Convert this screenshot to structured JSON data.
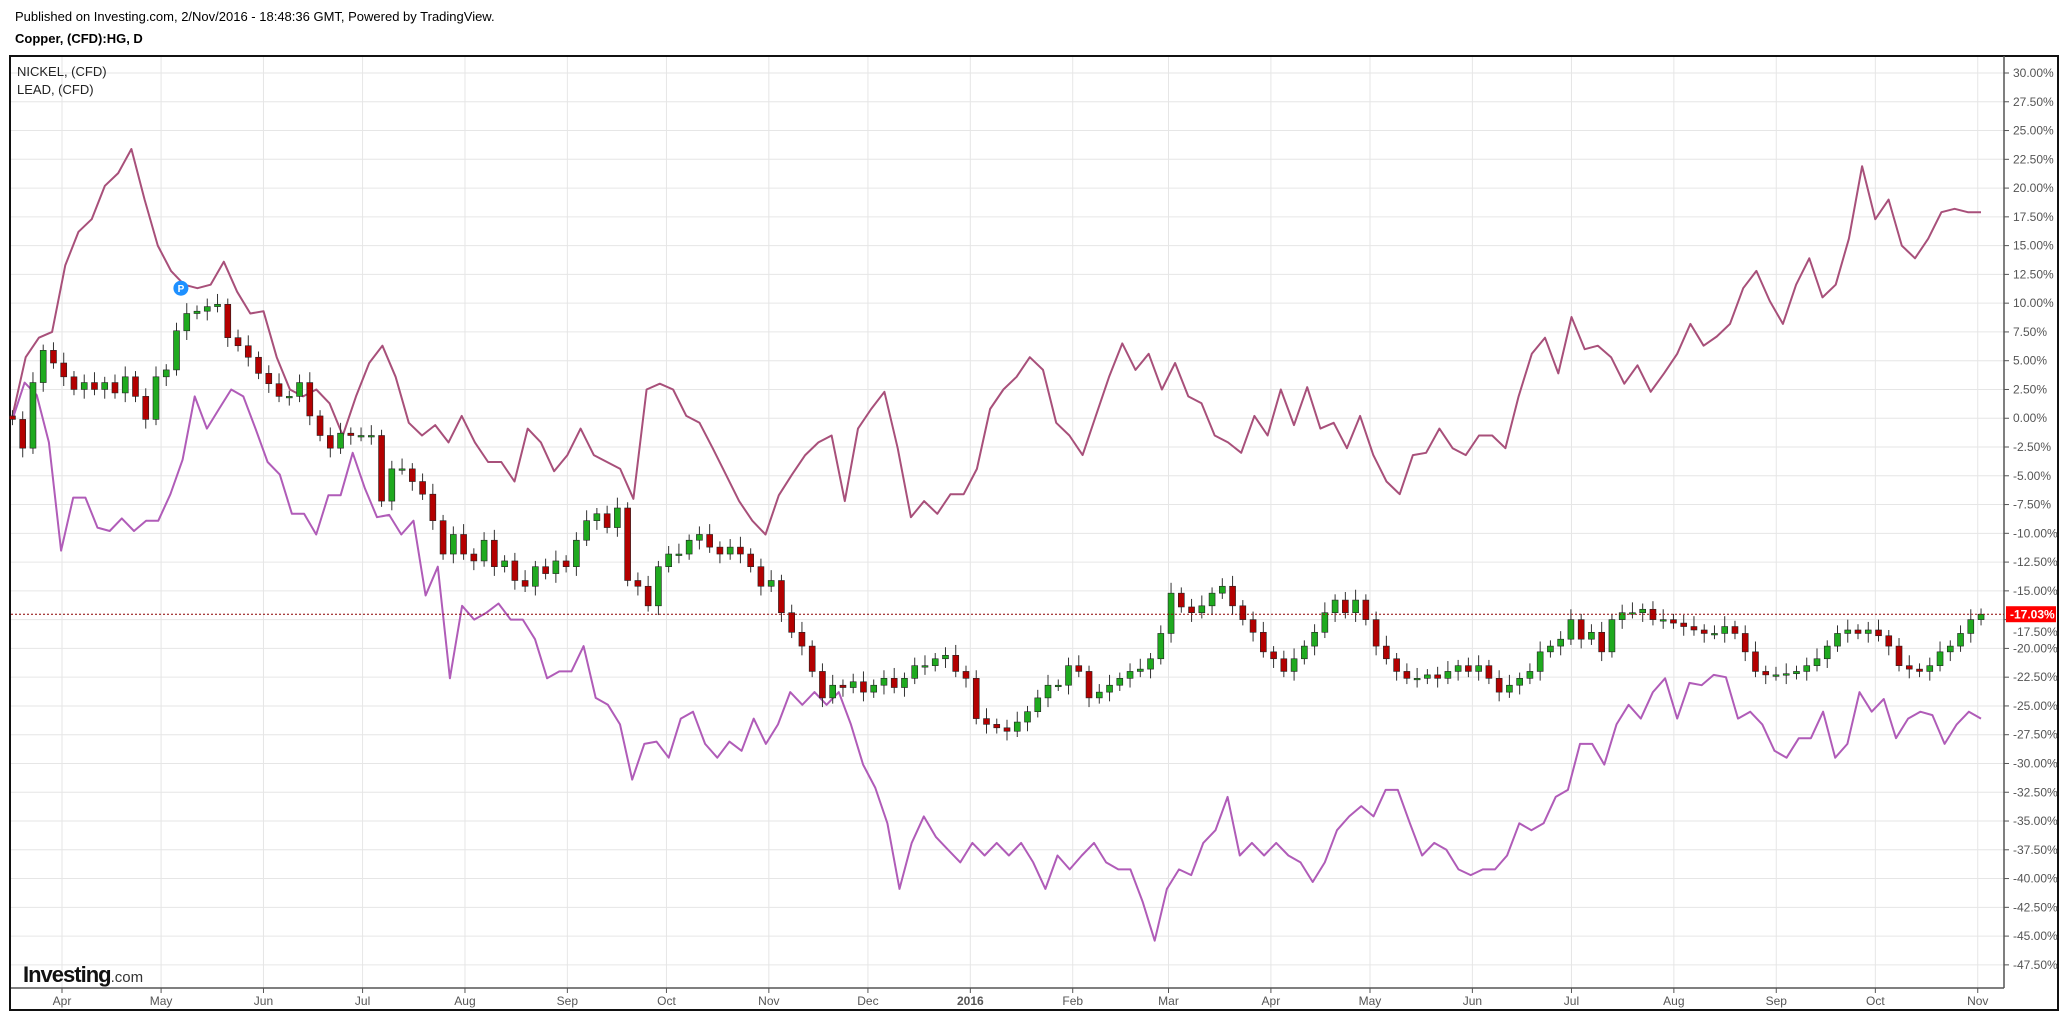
{
  "header": {
    "published": "Published on Investing.com, 2/Nov/2016 - 18:48:36 GMT, Powered by TradingView.",
    "symbol": "Copper, (CFD):HG, D"
  },
  "logo": {
    "text": "Investing",
    "suffix": ".com"
  },
  "chart_data": {
    "type": "line",
    "title": "Copper, (CFD):HG, D",
    "xlim": [
      "2015-03-17",
      "2016-11-02"
    ],
    "ylim": [
      -50,
      31.5
    ],
    "y_unit": "%",
    "grid": true,
    "legend_placement": "top-left",
    "x_ticks": [
      {
        "label": "Apr",
        "date": "2015-04-01"
      },
      {
        "label": "May",
        "date": "2015-05-01"
      },
      {
        "label": "Jun",
        "date": "2015-06-01"
      },
      {
        "label": "Jul",
        "date": "2015-07-01"
      },
      {
        "label": "Aug",
        "date": "2015-08-01"
      },
      {
        "label": "Sep",
        "date": "2015-09-01"
      },
      {
        "label": "Oct",
        "date": "2015-10-01"
      },
      {
        "label": "Nov",
        "date": "2015-11-01"
      },
      {
        "label": "Dec",
        "date": "2015-12-01"
      },
      {
        "label": "2016",
        "date": "2016-01-01"
      },
      {
        "label": "Feb",
        "date": "2016-02-01"
      },
      {
        "label": "Mar",
        "date": "2016-03-01"
      },
      {
        "label": "Apr",
        "date": "2016-04-01"
      },
      {
        "label": "May",
        "date": "2016-05-01"
      },
      {
        "label": "Jun",
        "date": "2016-06-01"
      },
      {
        "label": "Jul",
        "date": "2016-07-01"
      },
      {
        "label": "Aug",
        "date": "2016-08-01"
      },
      {
        "label": "Sep",
        "date": "2016-09-01"
      },
      {
        "label": "Oct",
        "date": "2016-10-01"
      },
      {
        "label": "Nov",
        "date": "2016-11-01"
      }
    ],
    "y_ticks": [
      "30.00%",
      "27.50%",
      "25.00%",
      "22.50%",
      "20.00%",
      "17.50%",
      "15.00%",
      "12.50%",
      "10.00%",
      "7.50%",
      "5.00%",
      "2.50%",
      "0.00%",
      "-2.50%",
      "-5.00%",
      "-7.50%",
      "-10.00%",
      "-12.50%",
      "-15.00%",
      "-17.50%",
      "-20.00%",
      "-22.50%",
      "-25.00%",
      "-27.50%",
      "-30.00%",
      "-32.50%",
      "-35.00%",
      "-37.50%",
      "-40.00%",
      "-42.50%",
      "-45.00%",
      "-47.50%"
    ],
    "last_value_label": "-17.03%",
    "last_value": -17.03,
    "colors": {
      "up": "#1faa1f",
      "down": "#b40000",
      "nickel": "#a8507a",
      "lead": "#b05cb8",
      "last": "#ff0000",
      "marker": "#1e90ff"
    },
    "marker": {
      "label": "P",
      "date": "2015-05-07",
      "value": 11.3
    },
    "series": [
      {
        "name": "NICKEL,  (CFD)",
        "kind": "line",
        "values": [
          0.2,
          5.3,
          7,
          7.5,
          13.3,
          16.2,
          17.3,
          20.2,
          21.3,
          23.4,
          19,
          15,
          12.8,
          11.6,
          11.3,
          11.6,
          13.6,
          11,
          9.1,
          9.3,
          5.3,
          2.5,
          1.9,
          2.5,
          1.3,
          -1.5,
          1.9,
          4.8,
          6.3,
          3.6,
          -0.4,
          -1.5,
          -0.6,
          -2.1,
          0.2,
          -2.1,
          -3.8,
          -3.8,
          -5.5,
          -0.9,
          -2.1,
          -4.6,
          -3.2,
          -0.9,
          -3.2,
          -3.8,
          -4.4,
          -7,
          2.5,
          3,
          2.5,
          0.2,
          -0.4,
          -2.6,
          -4.9,
          -7.2,
          -8.9,
          -10.1,
          -6.7,
          -4.9,
          -3.2,
          -2.1,
          -1.5,
          -7.2,
          -0.9,
          0.8,
          2.3,
          -2.6,
          -8.6,
          -7.2,
          -8.3,
          -6.6,
          -6.6,
          -4.4,
          0.8,
          2.5,
          3.6,
          5.3,
          4.2,
          -0.4,
          -1.5,
          -3.2,
          0.2,
          3.6,
          6.5,
          4.2,
          5.6,
          2.5,
          4.8,
          1.9,
          1.3,
          -1.5,
          -2.1,
          -3,
          0.2,
          -1.5,
          2.5,
          -0.6,
          2.7,
          -0.9,
          -0.4,
          -2.6,
          0.2,
          -3.2,
          -5.5,
          -6.6,
          -3.2,
          -3,
          -0.9,
          -2.6,
          -3.2,
          -1.5,
          -1.5,
          -2.6,
          1.9,
          5.6,
          7,
          3.9,
          8.8,
          6,
          6.3,
          5.3,
          3,
          4.6,
          2.3,
          3.9,
          5.6,
          8.2,
          6.3,
          7.1,
          8.2,
          11.3,
          12.8,
          10.2,
          8.2,
          11.6,
          13.9,
          10.5,
          11.6,
          15.6,
          21.9,
          17.3,
          19,
          15,
          13.9,
          15.6,
          17.9,
          18.2,
          17.9,
          17.9
        ]
      },
      {
        "name": "LEAD,  (CFD)",
        "kind": "line",
        "values": [
          -0.1,
          3.1,
          2,
          -2.1,
          -11.5,
          -6.9,
          -6.9,
          -9.5,
          -9.8,
          -8.7,
          -9.8,
          -8.9,
          -8.9,
          -6.6,
          -3.6,
          1.9,
          -0.9,
          0.8,
          2.5,
          1.9,
          -0.9,
          -3.8,
          -4.9,
          -8.3,
          -8.3,
          -10.1,
          -6.7,
          -6.7,
          -3,
          -6.1,
          -8.6,
          -8.4,
          -10.1,
          -8.9,
          -15.4,
          -12.9,
          -22.6,
          -16.3,
          -17.5,
          -16.9,
          -16.1,
          -17.5,
          -17.5,
          -19.2,
          -22.6,
          -22,
          -22,
          -19.8,
          -24.3,
          -24.9,
          -26.6,
          -31.4,
          -28.3,
          -28.1,
          -29.5,
          -26.1,
          -25.5,
          -28.3,
          -29.5,
          -28.1,
          -28.9,
          -26.1,
          -28.3,
          -26.6,
          -23.8,
          -24.9,
          -23.8,
          -24.9,
          -23.8,
          -26.6,
          -30.1,
          -32.1,
          -35.2,
          -40.9,
          -36.9,
          -34.6,
          -36.4,
          -37.5,
          -38.6,
          -36.9,
          -38,
          -36.9,
          -38,
          -36.9,
          -38.6,
          -40.9,
          -38,
          -39.2,
          -38,
          -36.9,
          -38.6,
          -39.2,
          -39.2,
          -42,
          -45.4,
          -40.9,
          -39.2,
          -39.7,
          -36.9,
          -35.8,
          -32.9,
          -38,
          -36.9,
          -38,
          -36.9,
          -38,
          -38.6,
          -40.3,
          -38.6,
          -35.8,
          -34.6,
          -33.7,
          -34.6,
          -32.3,
          -32.3,
          -35.2,
          -38,
          -36.9,
          -37.5,
          -39.2,
          -39.7,
          -39.2,
          -39.2,
          -38,
          -35.2,
          -35.8,
          -35.2,
          -32.9,
          -32.3,
          -28.3,
          -28.3,
          -30.1,
          -26.6,
          -24.9,
          -26.1,
          -23.8,
          -22.6,
          -26.1,
          -23,
          -23.2,
          -22.3,
          -22.5,
          -26.1,
          -25.5,
          -26.6,
          -28.9,
          -29.5,
          -27.8,
          -27.8,
          -25.5,
          -29.5,
          -28.3,
          -23.8,
          -25.5,
          -24.4,
          -27.8,
          -26.1,
          -25.5,
          -25.8,
          -28.3,
          -26.6,
          -25.5,
          -26.1
        ]
      },
      {
        "kind": "candlestick",
        "closes": [
          -0.1,
          -2.6,
          3.1,
          5.9,
          4.8,
          3.6,
          2.5,
          3.1,
          2.5,
          3.1,
          2.2,
          3.6,
          1.9,
          -0.1,
          3.6,
          4.2,
          7.6,
          9.1,
          9.3,
          9.7,
          9.9,
          7,
          6.3,
          5.3,
          3.9,
          3,
          1.9,
          1.9,
          3.1,
          0.2,
          -1.5,
          -2.6,
          -1.3,
          -1.5,
          -1.5,
          -1.5,
          -7.2,
          -4.4,
          -4.4,
          -5.5,
          -6.6,
          -8.9,
          -11.8,
          -10.1,
          -11.8,
          -12.4,
          -10.6,
          -12.9,
          -12.4,
          -14.1,
          -14.6,
          -12.9,
          -13.5,
          -12.4,
          -12.9,
          -10.6,
          -8.9,
          -8.3,
          -9.5,
          -7.8,
          -14.1,
          -14.6,
          -16.3,
          -12.9,
          -11.8,
          -11.8,
          -10.6,
          -10.1,
          -11.2,
          -11.8,
          -11.2,
          -11.8,
          -12.9,
          -14.6,
          -14.1,
          -16.9,
          -18.6,
          -19.8,
          -22,
          -24.3,
          -23.2,
          -23.4,
          -22.9,
          -23.8,
          -23.2,
          -22.6,
          -23.4,
          -22.6,
          -21.5,
          -21.5,
          -20.9,
          -20.6,
          -22,
          -22.6,
          -26.1,
          -26.6,
          -26.9,
          -27.2,
          -26.4,
          -25.5,
          -24.3,
          -23.2,
          -23.2,
          -21.5,
          -22,
          -24.3,
          -23.8,
          -23.2,
          -22.6,
          -22,
          -21.8,
          -20.9,
          -18.7,
          -15.2,
          -16.4,
          -16.9,
          -16.3,
          -15.2,
          -14.6,
          -16.3,
          -17.5,
          -18.6,
          -20.3,
          -20.9,
          -22,
          -20.9,
          -19.8,
          -18.6,
          -16.9,
          -15.8,
          -16.9,
          -15.8,
          -17.5,
          -19.8,
          -20.9,
          -22,
          -22.6,
          -22.6,
          -22.3,
          -22.6,
          -22,
          -21.5,
          -22,
          -21.5,
          -22.6,
          -23.8,
          -23.2,
          -22.6,
          -22,
          -20.3,
          -19.8,
          -19.2,
          -17.5,
          -19.2,
          -18.6,
          -20.3,
          -17.5,
          -16.9,
          -16.9,
          -16.6,
          -17.5,
          -17.5,
          -17.8,
          -18.1,
          -18.4,
          -18.7,
          -18.7,
          -18.1,
          -18.7,
          -20.3,
          -22,
          -22.3,
          -22.3,
          -22.2,
          -22,
          -21.5,
          -20.9,
          -19.8,
          -18.7,
          -18.4,
          -18.7,
          -18.4,
          -18.9,
          -19.8,
          -21.5,
          -21.8,
          -22,
          -21.5,
          -20.3,
          -19.8,
          -18.7,
          -17.5,
          -17.03
        ]
      }
    ]
  }
}
